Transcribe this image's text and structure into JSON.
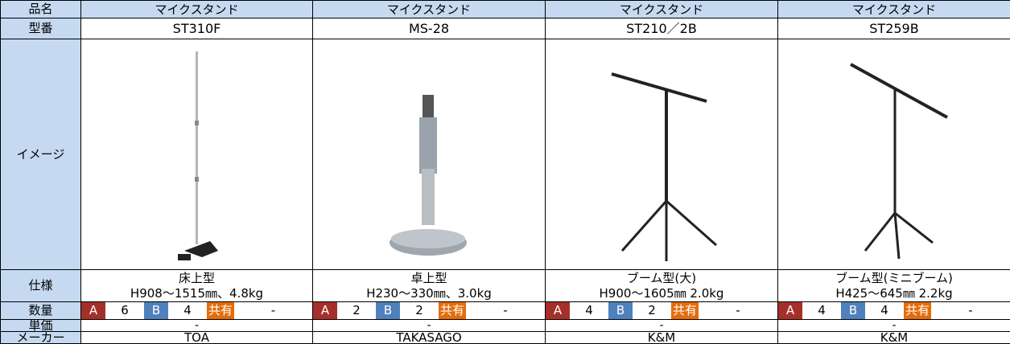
{
  "table": {
    "header": {
      "label": "品名",
      "values": [
        "マイクスタンド",
        "マイクスタンド",
        "マイクスタンド",
        "マイクスタンド"
      ]
    },
    "model": {
      "label": "型番",
      "values": [
        "ST310F",
        "MS-28",
        "ST210／2B",
        "ST259B"
      ]
    },
    "image": {
      "label": "イメージ"
    },
    "spec": {
      "label": "仕様",
      "values": [
        {
          "kind": "床上型",
          "size": "H908～1515㎜、4.8kg"
        },
        {
          "kind": "卓上型",
          "size": "H230～330㎜、3.0kg"
        },
        {
          "kind": "ブーム型(大)",
          "size": "H900～1605㎜  2.0kg"
        },
        {
          "kind": "ブーム型(ミニブーム)",
          "size": "H425～645㎜  2.2kg"
        }
      ]
    },
    "quantity": {
      "label": "数量",
      "tags": {
        "a": "A",
        "b": "B",
        "shared": "共有"
      },
      "values": [
        {
          "a": 6,
          "b": 4,
          "shared": "-"
        },
        {
          "a": 2,
          "b": 2,
          "shared": "-"
        },
        {
          "a": 4,
          "b": 2,
          "shared": "-"
        },
        {
          "a": 4,
          "b": 4,
          "shared": "-"
        }
      ]
    },
    "price": {
      "label": "単価",
      "values": [
        "-",
        "-",
        "-",
        "-"
      ]
    },
    "maker": {
      "label": "メーカー",
      "values": [
        "TOA",
        "TAKASAGO",
        "K&M",
        "K&M"
      ]
    }
  }
}
